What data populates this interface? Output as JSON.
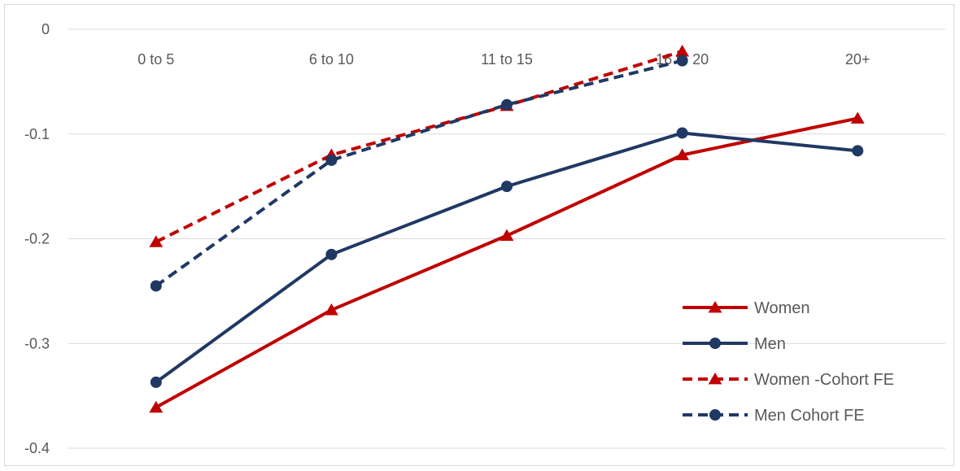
{
  "chart_data": {
    "type": "line",
    "title": "",
    "xlabel": "",
    "ylabel": "",
    "categories": [
      "0 to 5",
      "6 to 10",
      "11 to 15",
      "16 to 20",
      "20+"
    ],
    "ylim": [
      -0.4,
      0
    ],
    "yticks": [
      0,
      -0.1,
      -0.2,
      -0.3,
      -0.4
    ],
    "ytick_labels": [
      "0",
      "-0.1",
      "-0.2",
      "-0.3",
      "-0.4"
    ],
    "grid": true,
    "legend_position": "bottom-right",
    "series": [
      {
        "name": "Women",
        "color": "#c00000",
        "style": "solid",
        "marker": "triangle",
        "values": [
          -0.361,
          -0.268,
          -0.197,
          -0.12,
          -0.085
        ]
      },
      {
        "name": "Men",
        "color": "#203864",
        "style": "solid",
        "marker": "circle",
        "values": [
          -0.337,
          -0.215,
          -0.15,
          -0.099,
          -0.116
        ]
      },
      {
        "name": "Women -Cohort FE",
        "color": "#c00000",
        "style": "dashed",
        "marker": "triangle",
        "values": [
          -0.203,
          -0.12,
          -0.073,
          -0.021,
          null
        ]
      },
      {
        "name": "Men Cohort FE",
        "color": "#203864",
        "style": "dashed",
        "marker": "circle",
        "values": [
          -0.245,
          -0.125,
          -0.072,
          -0.03,
          null
        ]
      }
    ]
  }
}
